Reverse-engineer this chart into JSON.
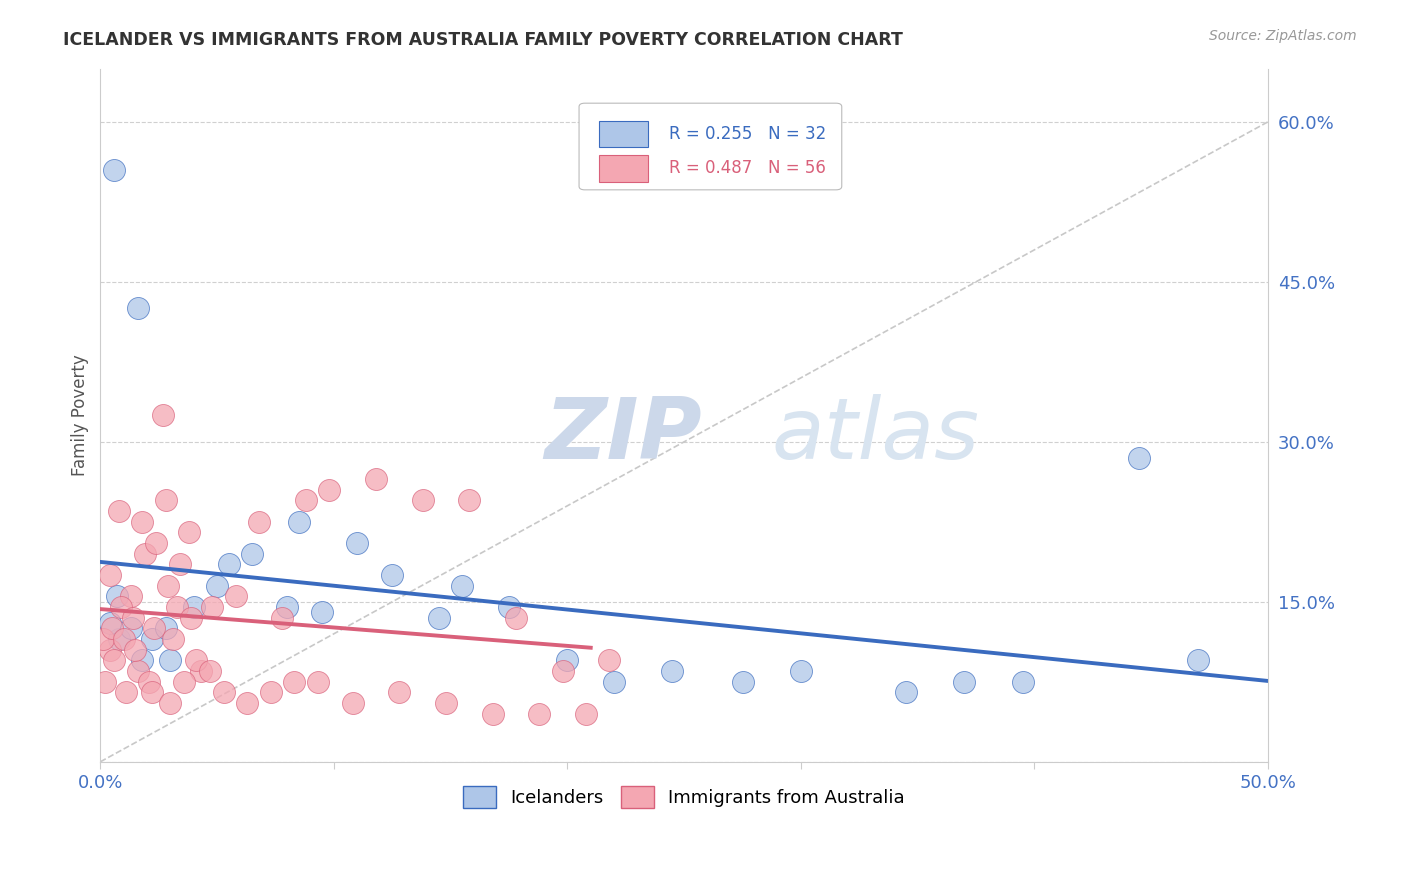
{
  "title": "ICELANDER VS IMMIGRANTS FROM AUSTRALIA FAMILY POVERTY CORRELATION CHART",
  "source": "Source: ZipAtlas.com",
  "ylabel": "Family Poverty",
  "yticks": [
    0.0,
    0.15,
    0.3,
    0.45,
    0.6
  ],
  "ytick_labels": [
    "",
    "15.0%",
    "30.0%",
    "45.0%",
    "60.0%"
  ],
  "xlim": [
    0.0,
    0.5
  ],
  "ylim": [
    0.0,
    0.65
  ],
  "watermark_zip": "ZIP",
  "watermark_atlas": "atlas",
  "legend_r1": "0.255",
  "legend_n1": "32",
  "legend_r2": "0.487",
  "legend_n2": "56",
  "icelanders_color": "#aec6e8",
  "immigrants_color": "#f4a7b2",
  "icelanders_line_color": "#3a6bbf",
  "immigrants_line_color": "#d9607a",
  "diagonal_color": "#c8c8c8",
  "icelanders_scatter_x": [
    0.008,
    0.013,
    0.018,
    0.004,
    0.007,
    0.022,
    0.03,
    0.04,
    0.05,
    0.065,
    0.08,
    0.095,
    0.11,
    0.125,
    0.145,
    0.175,
    0.2,
    0.22,
    0.245,
    0.275,
    0.3,
    0.345,
    0.395,
    0.445,
    0.47,
    0.006,
    0.016,
    0.028,
    0.055,
    0.085,
    0.155,
    0.37
  ],
  "icelanders_scatter_y": [
    0.115,
    0.125,
    0.095,
    0.13,
    0.155,
    0.115,
    0.095,
    0.145,
    0.165,
    0.195,
    0.145,
    0.14,
    0.205,
    0.175,
    0.135,
    0.145,
    0.095,
    0.075,
    0.085,
    0.075,
    0.085,
    0.065,
    0.075,
    0.285,
    0.095,
    0.555,
    0.425,
    0.125,
    0.185,
    0.225,
    0.165,
    0.075
  ],
  "immigrants_scatter_x": [
    0.004,
    0.008,
    0.013,
    0.018,
    0.023,
    0.028,
    0.033,
    0.038,
    0.043,
    0.004,
    0.009,
    0.014,
    0.019,
    0.024,
    0.029,
    0.034,
    0.039,
    0.048,
    0.058,
    0.068,
    0.078,
    0.088,
    0.098,
    0.118,
    0.138,
    0.158,
    0.178,
    0.198,
    0.218,
    0.002,
    0.006,
    0.011,
    0.016,
    0.021,
    0.027,
    0.031,
    0.036,
    0.041,
    0.047,
    0.053,
    0.063,
    0.073,
    0.083,
    0.093,
    0.108,
    0.128,
    0.148,
    0.168,
    0.188,
    0.208,
    0.001,
    0.005,
    0.01,
    0.015,
    0.022,
    0.03
  ],
  "immigrants_scatter_y": [
    0.105,
    0.235,
    0.155,
    0.225,
    0.125,
    0.245,
    0.145,
    0.215,
    0.085,
    0.175,
    0.145,
    0.135,
    0.195,
    0.205,
    0.165,
    0.185,
    0.135,
    0.145,
    0.155,
    0.225,
    0.135,
    0.245,
    0.255,
    0.265,
    0.245,
    0.245,
    0.135,
    0.085,
    0.095,
    0.075,
    0.095,
    0.065,
    0.085,
    0.075,
    0.325,
    0.115,
    0.075,
    0.095,
    0.085,
    0.065,
    0.055,
    0.065,
    0.075,
    0.075,
    0.055,
    0.065,
    0.055,
    0.045,
    0.045,
    0.045,
    0.115,
    0.125,
    0.115,
    0.105,
    0.065,
    0.055
  ]
}
